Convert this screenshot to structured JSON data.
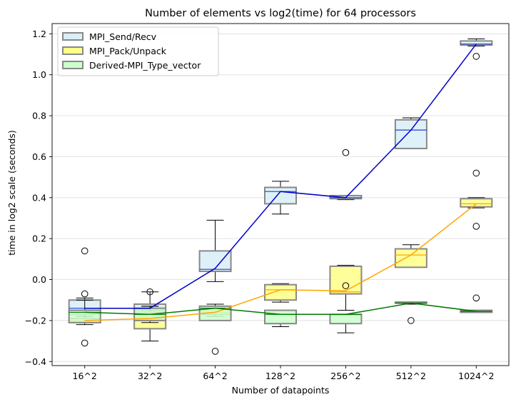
{
  "chart_data": {
    "type": "box",
    "title": "Number of elements vs log2(time) for 64 processors",
    "xlabel": "Number of datapoints",
    "ylabel": "time in log2 scale (seconds)",
    "categories": [
      "16^2",
      "32^2",
      "64^2",
      "128^2",
      "256^2",
      "512^2",
      "1024^2"
    ],
    "ylim": [
      -0.42,
      1.25
    ],
    "yticks": [
      -0.4,
      -0.2,
      0.0,
      0.2,
      0.4,
      0.6,
      0.8,
      1.0,
      1.2
    ],
    "ytick_labels": [
      "−0.4",
      "−0.2",
      "0.0",
      "0.2",
      "0.4",
      "0.6",
      "0.8",
      "1.0",
      "1.2"
    ],
    "grid": "horizontal",
    "legend_position": "top-left",
    "series": [
      {
        "name": "MPI_Send/Recv",
        "fill": "#d9eef7",
        "edge": "#888888",
        "median_color": "#1f3fd6",
        "line_color": "#0000cd",
        "boxes": [
          {
            "whislo": -0.22,
            "q1": -0.17,
            "med": -0.14,
            "q3": -0.1,
            "whishi": -0.09,
            "fliers": [
              0.14,
              -0.07,
              -0.31
            ]
          },
          {
            "whislo": -0.15,
            "q1": -0.15,
            "med": -0.14,
            "q3": -0.12,
            "whishi": -0.06,
            "fliers": [
              -0.06
            ]
          },
          {
            "whislo": -0.01,
            "q1": 0.04,
            "med": 0.05,
            "q3": 0.14,
            "whishi": 0.29,
            "fliers": []
          },
          {
            "whislo": 0.32,
            "q1": 0.37,
            "med": 0.43,
            "q3": 0.45,
            "whishi": 0.48,
            "fliers": []
          },
          {
            "whislo": 0.39,
            "q1": 0.395,
            "med": 0.4,
            "q3": 0.41,
            "whishi": 0.41,
            "fliers": [
              0.62
            ]
          },
          {
            "whislo": 0.64,
            "q1": 0.64,
            "med": 0.73,
            "q3": 0.78,
            "whishi": 0.79,
            "fliers": []
          },
          {
            "whislo": 1.14,
            "q1": 1.145,
            "med": 1.15,
            "q3": 1.165,
            "whishi": 1.175,
            "fliers": [
              1.09
            ]
          }
        ],
        "line": [
          -0.14,
          -0.14,
          0.055,
          0.43,
          0.4,
          0.73,
          1.15
        ]
      },
      {
        "name": "MPI_Pack/Unpack",
        "fill": "#ffff88",
        "edge": "#888888",
        "median_color": "#ffa500",
        "line_color": "#ffa500",
        "boxes": [
          {
            "whislo": -0.21,
            "q1": -0.21,
            "med": -0.2,
            "q3": -0.19,
            "whishi": -0.18,
            "fliers": []
          },
          {
            "whislo": -0.3,
            "q1": -0.24,
            "med": -0.19,
            "q3": -0.16,
            "whishi": -0.13,
            "fliers": []
          },
          {
            "whislo": -0.18,
            "q1": -0.17,
            "med": -0.16,
            "q3": -0.14,
            "whishi": -0.12,
            "fliers": [
              -0.35
            ]
          },
          {
            "whislo": -0.11,
            "q1": -0.1,
            "med": -0.05,
            "q3": -0.025,
            "whishi": -0.02,
            "fliers": []
          },
          {
            "whislo": -0.15,
            "q1": -0.07,
            "med": -0.06,
            "q3": 0.065,
            "whishi": 0.07,
            "fliers": [
              -0.03
            ]
          },
          {
            "whislo": 0.06,
            "q1": 0.06,
            "med": 0.12,
            "q3": 0.15,
            "whishi": 0.17,
            "fliers": []
          },
          {
            "whislo": 0.35,
            "q1": 0.355,
            "med": 0.37,
            "q3": 0.395,
            "whishi": 0.4,
            "fliers": [
              0.52,
              0.26,
              -0.09
            ]
          }
        ],
        "line": [
          -0.2,
          -0.19,
          -0.16,
          -0.05,
          -0.055,
          0.12,
          0.37
        ]
      },
      {
        "name": "Derived-MPI_Type_vector",
        "fill": "#ccffcc",
        "edge": "#888888",
        "median_color": "#007a00",
        "line_color": "#007a00",
        "boxes": [
          {
            "whislo": -0.21,
            "q1": -0.21,
            "med": -0.16,
            "q3": -0.15,
            "whishi": -0.1,
            "fliers": []
          },
          {
            "whislo": -0.21,
            "q1": -0.2,
            "med": -0.17,
            "q3": -0.14,
            "whishi": -0.13,
            "fliers": []
          },
          {
            "whislo": -0.2,
            "q1": -0.2,
            "med": -0.14,
            "q3": -0.13,
            "whishi": -0.12,
            "fliers": []
          },
          {
            "whislo": -0.23,
            "q1": -0.215,
            "med": -0.17,
            "q3": -0.15,
            "whishi": -0.15,
            "fliers": []
          },
          {
            "whislo": -0.26,
            "q1": -0.215,
            "med": -0.17,
            "q3": -0.17,
            "whishi": -0.17,
            "fliers": []
          },
          {
            "whislo": -0.12,
            "q1": -0.115,
            "med": -0.115,
            "q3": -0.11,
            "whishi": -0.11,
            "fliers": [
              -0.2
            ]
          },
          {
            "whislo": -0.16,
            "q1": -0.16,
            "med": -0.155,
            "q3": -0.15,
            "whishi": -0.15,
            "fliers": []
          }
        ],
        "line": [
          -0.16,
          -0.17,
          -0.14,
          -0.17,
          -0.17,
          -0.115,
          -0.155
        ]
      }
    ]
  }
}
